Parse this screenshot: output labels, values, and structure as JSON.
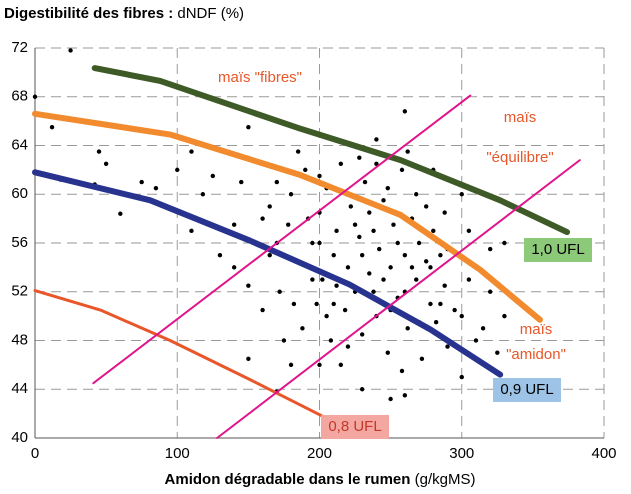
{
  "chart_data": {
    "type": "scatter",
    "title": "Digestibilité des fibres :",
    "title_suffix": " dNDF (%)",
    "x_label": "Amidon dégradable dans le rumen",
    "x_label_suffix": " (g/kgMS)",
    "xlim": [
      0,
      400
    ],
    "xticks": [
      0,
      100,
      200,
      300,
      400
    ],
    "ylim": [
      40,
      72
    ],
    "yticks": [
      40,
      44,
      48,
      52,
      56,
      60,
      64,
      68,
      72
    ],
    "grid": true,
    "points": {
      "color": "#000000",
      "x": [
        0,
        12,
        25,
        18,
        45,
        50,
        42,
        60,
        75,
        85,
        100,
        110,
        118,
        125,
        110,
        150,
        140,
        150,
        170,
        200,
        230,
        250,
        260,
        300,
        310,
        300,
        320,
        330,
        260,
        240,
        160,
        165,
        170,
        172,
        178,
        180,
        185,
        188,
        190,
        195,
        198,
        200,
        202,
        205,
        208,
        210,
        212,
        215,
        218,
        220,
        222,
        225,
        228,
        230,
        232,
        235,
        238,
        240,
        242,
        245,
        248,
        250,
        252,
        255,
        258,
        260,
        262,
        265,
        268,
        270,
        272,
        275,
        278,
        280,
        282,
        285,
        288,
        290,
        295,
        305,
        315,
        320,
        175,
        182,
        192,
        205,
        215,
        228,
        238,
        248,
        258,
        268,
        278,
        288,
        160,
        170,
        185,
        195,
        210,
        225,
        245,
        260,
        275,
        290,
        300,
        150,
        165,
        200,
        220,
        240,
        255,
        265,
        285,
        305,
        230,
        250,
        270,
        235,
        212,
        180,
        140,
        130,
        145,
        330,
        325,
        200,
        262,
        280,
        230
      ],
      "y": [
        68,
        65.5,
        71.8,
        61.2,
        63.5,
        62.5,
        60.8,
        58.4,
        61,
        60.5,
        62,
        63.5,
        60,
        61.5,
        57,
        65.5,
        54,
        46.5,
        43.8,
        46,
        44,
        43.2,
        43.5,
        45,
        48,
        60,
        52,
        56,
        66.8,
        64.5,
        58,
        55,
        61,
        52,
        57.5,
        60,
        54.5,
        49,
        62,
        56,
        51,
        58.5,
        53,
        60.5,
        48,
        55,
        57,
        62.5,
        50.5,
        54,
        59,
        52,
        56.5,
        48.5,
        61,
        53.5,
        57,
        50,
        55.5,
        59.5,
        47,
        54,
        57.5,
        51.5,
        62,
        55,
        49,
        58,
        53,
        56,
        46.5,
        54.5,
        51,
        57,
        49.5,
        55,
        52.5,
        47.5,
        50.5,
        53,
        49,
        55.5,
        48,
        51,
        58,
        50,
        46,
        63,
        52,
        60.5,
        45.5,
        60,
        54,
        58.5,
        50.5,
        56,
        63.5,
        53,
        51,
        57.5,
        53,
        52,
        59,
        55.5,
        50,
        52.5,
        59,
        61.5,
        47.5,
        62.5,
        56,
        54,
        51,
        57,
        55,
        50.5,
        49.5,
        58.5,
        52.5,
        46,
        57.5,
        55,
        61,
        50,
        47,
        56,
        63.5,
        62,
        59.5
      ]
    },
    "lines": [
      {
        "color": "#3d5a27",
        "x": [
          42,
          88,
          186,
          257,
          327,
          374
        ],
        "y": [
          70.35,
          69.3,
          65.4,
          62.8,
          59.5,
          56.9
        ]
      },
      {
        "color": "#f28a2e",
        "x": [
          0,
          95,
          186,
          257,
          313,
          355
        ],
        "y": [
          66.6,
          64.9,
          61.6,
          58.3,
          53.8,
          49.7
        ]
      },
      {
        "color": "#27338f",
        "x": [
          0,
          81,
          151,
          221,
          278,
          327
        ],
        "y": [
          61.8,
          59.5,
          56.2,
          52.6,
          48.9,
          45.2
        ]
      },
      {
        "color": "#e8572a",
        "x": [
          0,
          46,
          95,
          151,
          207
        ],
        "y": [
          52.1,
          50.5,
          48,
          44.8,
          41.5
        ]
      },
      {
        "color": "#e0148c",
        "x": [
          41,
          306
        ],
        "y": [
          44.5,
          68.1
        ]
      },
      {
        "color": "#e0148c",
        "x": [
          128,
          383
        ],
        "y": [
          40,
          62.8
        ]
      }
    ],
    "annotations": [
      "maïs \"fibres\"",
      "maïs",
      "\"équilibre\"",
      "maïs",
      "\"amidon\"",
      "1,0 UFL",
      "0,9 UFL",
      "0,8 UFL"
    ]
  }
}
